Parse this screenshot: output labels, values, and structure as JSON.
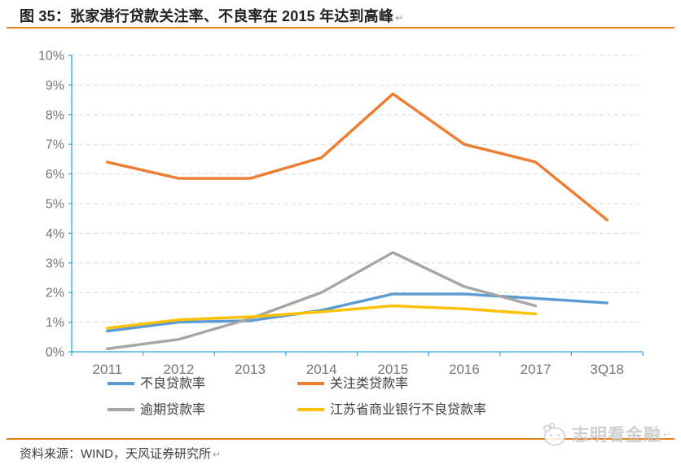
{
  "header": {
    "title": "图 35：张家港行贷款关注率、不良率在 2015 年达到高峰",
    "return_mark": "↵"
  },
  "chart_data": {
    "type": "line",
    "title": "张家港行贷款关注率、不良率在 2015 年达到高峰",
    "categories": [
      "2011",
      "2012",
      "2013",
      "2014",
      "2015",
      "2016",
      "2017",
      "3Q18"
    ],
    "series": [
      {
        "name": "不良贷款率",
        "color": "#5B9BD5",
        "values": [
          0.7,
          1.0,
          1.05,
          1.4,
          1.95,
          1.95,
          1.8,
          1.65
        ]
      },
      {
        "name": "关注类贷款率",
        "color": "#ED7D31",
        "values": [
          6.4,
          5.85,
          5.85,
          6.55,
          8.7,
          7.0,
          6.4,
          4.45
        ]
      },
      {
        "name": "逾期贷款率",
        "color": "#A5A5A5",
        "values": [
          0.1,
          0.42,
          1.12,
          2.0,
          3.35,
          2.2,
          1.55,
          null
        ]
      },
      {
        "name": "江苏省商业银行不良贷款率",
        "color": "#FFC000",
        "values": [
          0.8,
          1.08,
          1.18,
          1.35,
          1.55,
          1.45,
          1.28,
          null
        ]
      }
    ],
    "ylim": [
      0,
      10
    ],
    "ytick_step": 1,
    "ytick_suffix": "%",
    "xlabel": "",
    "ylabel": "",
    "grid": "horizontal-dashed",
    "legend_position": "bottom-two-columns",
    "axis_color": "#2FA6DF",
    "grid_color": "#D9D9D9",
    "tick_label_color": "#757575"
  },
  "footer": {
    "source_label": "资料来源：WIND，天风证券研究所",
    "return_mark": "↵"
  },
  "watermark": {
    "name": "志明看金融",
    "return_mark": "↵"
  },
  "accent_rule_color": "#E0831C"
}
